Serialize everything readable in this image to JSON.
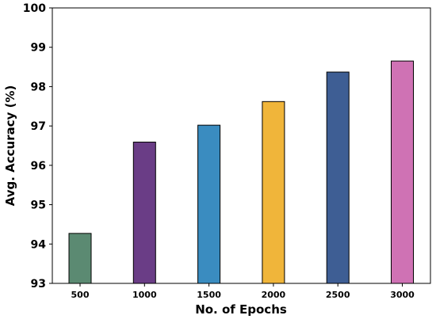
{
  "chart_data": {
    "type": "bar",
    "title": "",
    "xlabel": "No. of Epochs",
    "ylabel": "Avg. Accuracy (%)",
    "categories": [
      "500",
      "1000",
      "1500",
      "2000",
      "2500",
      "3000"
    ],
    "values": [
      94.27,
      96.59,
      97.02,
      97.62,
      98.37,
      98.65
    ],
    "ylim": [
      93,
      100
    ],
    "yticks": [
      "93",
      "94",
      "95",
      "96",
      "97",
      "98",
      "99",
      "100"
    ],
    "colors": [
      "#5b8a72",
      "#6a3d86",
      "#3a8cc0",
      "#f0b53a",
      "#3e5e94",
      "#cf72b4"
    ],
    "grid": false,
    "legend": "none"
  }
}
